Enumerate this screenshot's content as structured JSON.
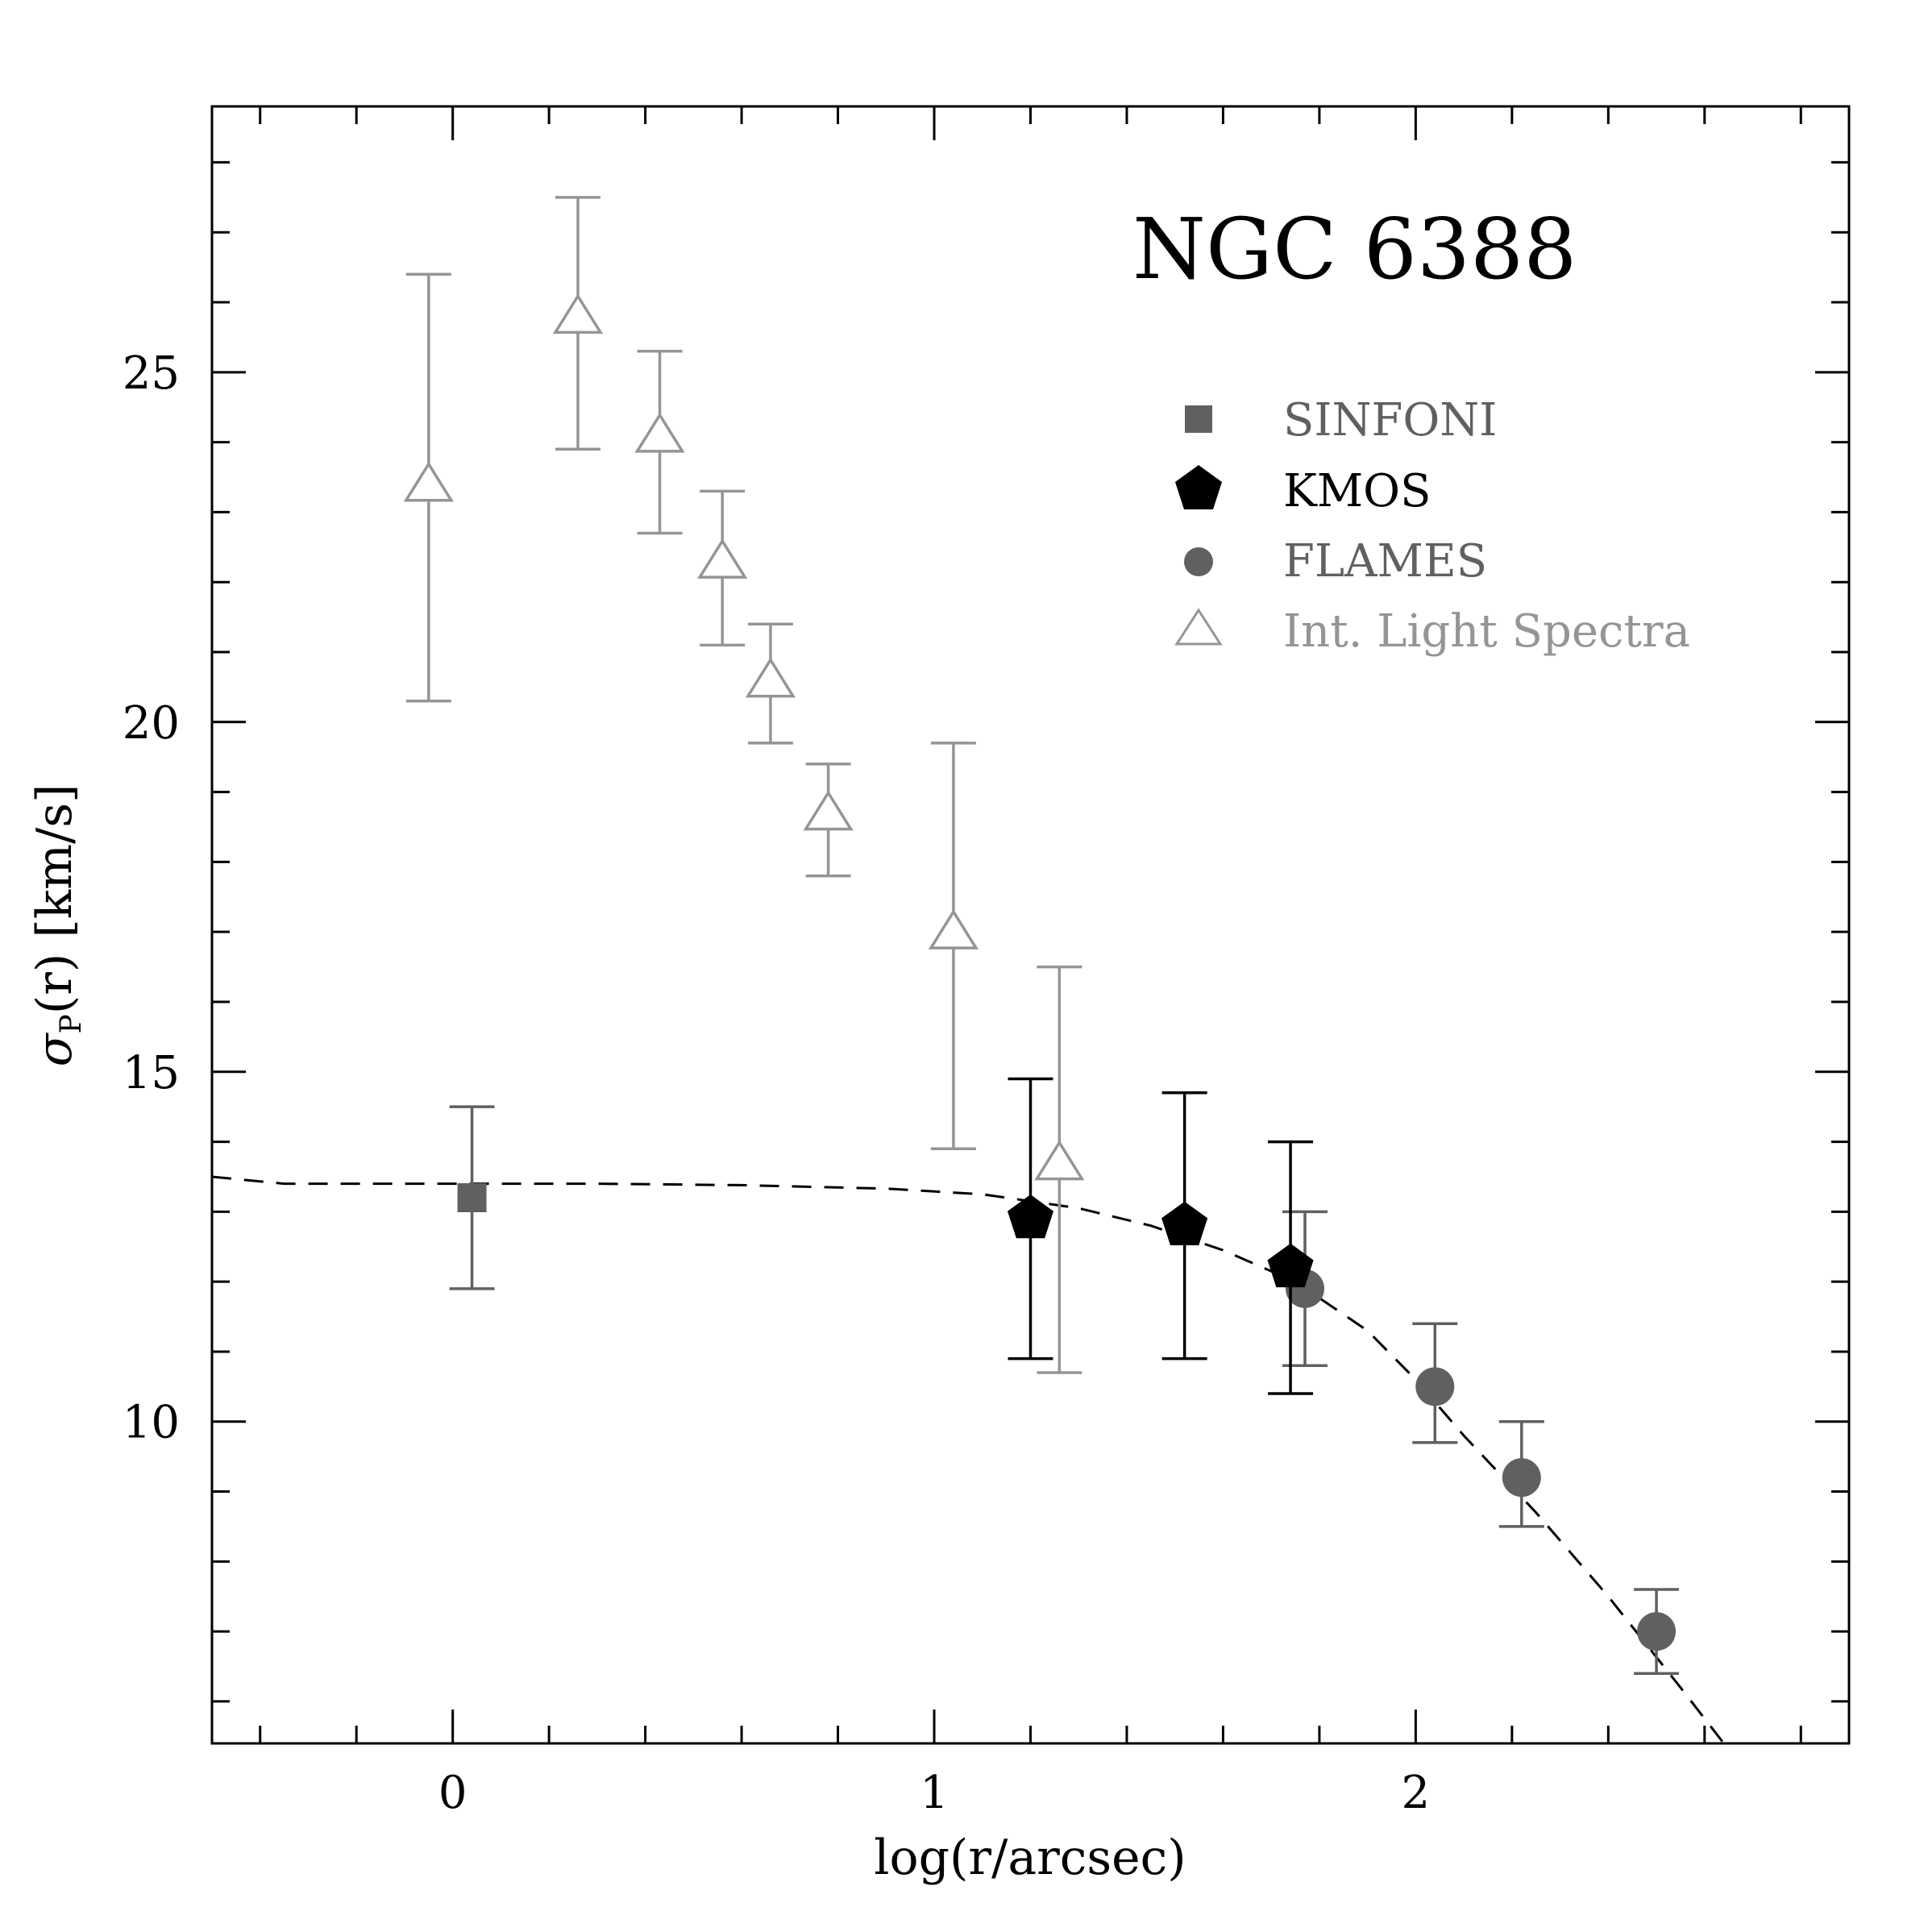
{
  "chart_data": {
    "type": "scatter",
    "title": "NGC 6388",
    "xlabel": "log(r/arcsec)",
    "ylabel": "σ",
    "ylabel_sub": "P",
    "ylabel_rest": "(r)  [km/s]",
    "xlim": [
      -0.5,
      2.9
    ],
    "ylim": [
      5.4,
      28.8
    ],
    "x_ticks": [
      0,
      1,
      2
    ],
    "x_tick_labels": [
      "0",
      "1",
      "2"
    ],
    "y_ticks": [
      10,
      15,
      20,
      25
    ],
    "y_tick_labels": [
      "10",
      "15",
      "20",
      "25"
    ],
    "legend": [
      "SINFONI",
      "KMOS",
      "FLAMES",
      "Int. Light Spectra"
    ],
    "legend_position": "top-right",
    "colors": {
      "sinfoni": "#606060",
      "kmos": "#000000",
      "flames": "#606060",
      "int_light": "#959595",
      "axis": "#000000",
      "model": "#000000"
    },
    "series": [
      {
        "name": "SINFONI",
        "marker": "square",
        "points": [
          {
            "x": 0.04,
            "y": 13.2,
            "ylo": 11.9,
            "yhi": 14.5
          }
        ]
      },
      {
        "name": "KMOS",
        "marker": "pentagon",
        "points": [
          {
            "x": 1.2,
            "y": 12.9,
            "ylo": 10.9,
            "yhi": 14.9
          },
          {
            "x": 1.52,
            "y": 12.8,
            "ylo": 10.9,
            "yhi": 14.7
          },
          {
            "x": 1.74,
            "y": 12.2,
            "ylo": 10.4,
            "yhi": 14.0
          }
        ]
      },
      {
        "name": "FLAMES",
        "marker": "circle",
        "points": [
          {
            "x": 1.77,
            "y": 11.9,
            "ylo": 10.8,
            "yhi": 13.0
          },
          {
            "x": 2.04,
            "y": 10.5,
            "ylo": 9.7,
            "yhi": 11.4
          },
          {
            "x": 2.22,
            "y": 9.2,
            "ylo": 8.5,
            "yhi": 10.0
          },
          {
            "x": 2.5,
            "y": 7.0,
            "ylo": 6.4,
            "yhi": 7.6
          }
        ]
      },
      {
        "name": "Int. Light Spectra",
        "marker": "triangle-open",
        "points": [
          {
            "x": -0.05,
            "y": 23.4,
            "ylo": 20.3,
            "yhi": 26.4
          },
          {
            "x": 0.26,
            "y": 25.8,
            "ylo": 23.9,
            "yhi": 27.5
          },
          {
            "x": 0.43,
            "y": 24.1,
            "ylo": 22.7,
            "yhi": 25.3
          },
          {
            "x": 0.56,
            "y": 22.3,
            "ylo": 21.1,
            "yhi": 23.3
          },
          {
            "x": 0.66,
            "y": 20.6,
            "ylo": 19.7,
            "yhi": 21.4
          },
          {
            "x": 0.78,
            "y": 18.7,
            "ylo": 17.8,
            "yhi": 19.4
          },
          {
            "x": 1.04,
            "y": 17.0,
            "ylo": 13.9,
            "yhi": 19.7
          },
          {
            "x": 1.26,
            "y": 13.7,
            "ylo": 10.7,
            "yhi": 16.5
          }
        ]
      }
    ],
    "model": {
      "name": "model",
      "style": "dashed",
      "x": [
        -0.5,
        -0.35,
        -0.2,
        0.0,
        0.3,
        0.6,
        0.9,
        1.1,
        1.3,
        1.45,
        1.6,
        1.75,
        1.9,
        2.0,
        2.1,
        2.25,
        2.4,
        2.55,
        2.64
      ],
      "y": [
        13.5,
        13.4,
        13.4,
        13.4,
        13.4,
        13.38,
        13.33,
        13.25,
        13.05,
        12.8,
        12.45,
        12.0,
        11.3,
        10.6,
        9.8,
        8.7,
        7.5,
        6.2,
        5.4
      ]
    }
  }
}
